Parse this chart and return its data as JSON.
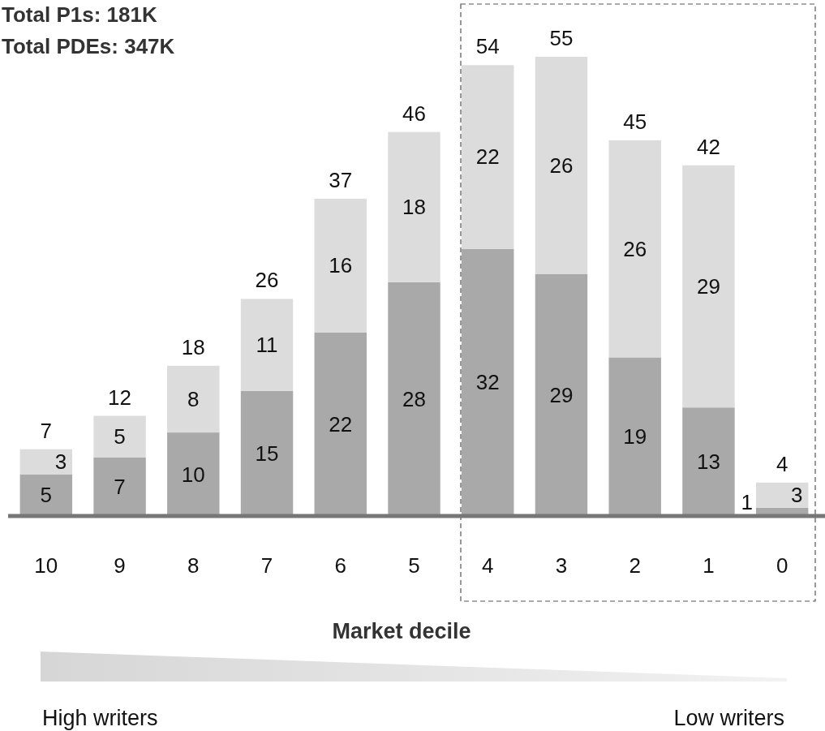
{
  "chart_data": {
    "type": "bar",
    "stacked": true,
    "data_labels": true,
    "xlabel": "Market decile",
    "categories": [
      "10",
      "9",
      "8",
      "7",
      "6",
      "5",
      "4",
      "3",
      "2",
      "1",
      "0"
    ],
    "series": [
      {
        "color": "#a9a9a9",
        "values": [
          5,
          7,
          10,
          15,
          22,
          28,
          32,
          29,
          19,
          13,
          1
        ]
      },
      {
        "color": "#dcdcdc",
        "values": [
          3,
          5,
          8,
          11,
          16,
          18,
          22,
          26,
          26,
          29,
          3
        ]
      }
    ],
    "totals": [
      "7",
      "12",
      "18",
      "26",
      "37",
      "46",
      "54",
      "55",
      "45",
      "42",
      "4"
    ],
    "annotations": [
      "Total P1s: 181K",
      "Total PDEs: 347K",
      "High writers",
      "Low writers"
    ]
  }
}
